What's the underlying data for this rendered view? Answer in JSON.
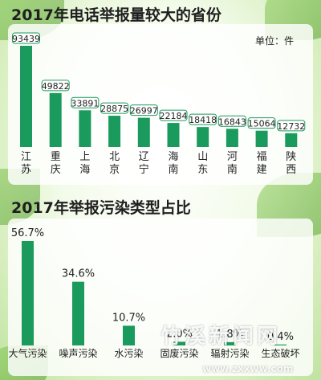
{
  "chart_data": [
    {
      "type": "bar",
      "title": "2017年电话举报量较大的省份",
      "unit_label": "单位：件",
      "categories": [
        "江苏",
        "重庆",
        "上海",
        "北京",
        "辽宁",
        "海南",
        "山东",
        "河南",
        "福建",
        "陕西"
      ],
      "values": [
        93439,
        49822,
        33891,
        28875,
        26997,
        22184,
        18418,
        16843,
        15064,
        12732
      ],
      "value_labels": [
        "93439",
        "49822",
        "33891",
        "28875",
        "26997",
        "22184",
        "18418",
        "16843",
        "15064",
        "12732"
      ],
      "bar_color": "#1a9a5c",
      "ylim": [
        0,
        93439
      ]
    },
    {
      "type": "bar",
      "title": "2017年举报污染类型占比",
      "categories": [
        "大气污染",
        "噪声污染",
        "水污染",
        "固废污染",
        "辐射污染",
        "生态破坏"
      ],
      "values": [
        56.7,
        34.6,
        10.7,
        2.0,
        1.8,
        0.4
      ],
      "value_labels": [
        "56.7%",
        "34.6%",
        "10.7%",
        "2.0%",
        "1.8%",
        "0.4%"
      ],
      "bar_color": "#1a9a5c",
      "ylim": [
        0,
        56.7
      ]
    }
  ],
  "watermark": {
    "logo_text": "竹溪新闻网",
    "url_text": "www.zxxww.com"
  },
  "colors": {
    "bar": "#1a9a5c",
    "label_border": "#1a9a5c",
    "background_green": "#bfe3a0"
  }
}
